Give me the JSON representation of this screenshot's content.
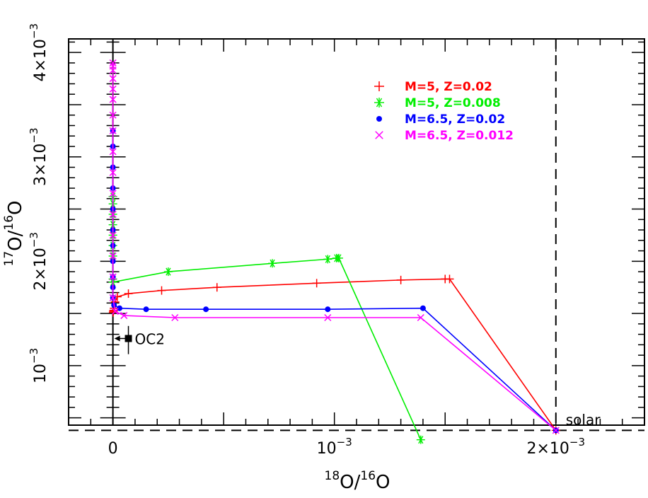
{
  "chart_data": {
    "type": "scatter",
    "xlabel": {
      "sup": "18",
      "base": "O/",
      "sup2": "16",
      "base2": "O"
    },
    "ylabel": {
      "sup": "17",
      "base": "O/",
      "sup2": "16",
      "base2": "O"
    },
    "xlim": [
      -0.0002,
      0.0024
    ],
    "ylim": [
      0.00043,
      0.00413
    ],
    "x_ticks": [
      {
        "value": 0,
        "label": "0"
      },
      {
        "value": 0.001,
        "label": "10",
        "exp": "−3"
      },
      {
        "value": 0.002,
        "label": "2×10",
        "exp": "−3"
      }
    ],
    "y_ticks": [
      {
        "value": 0.001,
        "label": "10",
        "exp": "−3"
      },
      {
        "value": 0.002,
        "label": "2×10",
        "exp": "−3"
      },
      {
        "value": 0.003,
        "label": "3×10",
        "exp": "−3"
      },
      {
        "value": 0.004,
        "label": "4×10",
        "exp": "−3"
      }
    ],
    "reference_lines": {
      "solar_x": 0.002,
      "solar_y": 0.00038,
      "label": "solar"
    },
    "observation": {
      "label": "OC2",
      "x": 7e-05,
      "y": 0.00126,
      "y_err": [
        0.00111,
        0.00138
      ],
      "upper_limit_arrow": true
    },
    "series": [
      {
        "name": "M=5, Z=0.02",
        "color": "#ff0000",
        "marker": "plus",
        "x": [
          0.002,
          0.00152,
          0.0015,
          0.0013,
          0.00092,
          0.00047,
          0.00022,
          7e-05,
          2e-05,
          1e-05,
          5e-06,
          3e-06,
          2e-06,
          1e-06
        ],
        "y": [
          0.00038,
          0.00183,
          0.00183,
          0.00182,
          0.00179,
          0.00175,
          0.00172,
          0.00169,
          0.00166,
          0.00161,
          0.00155,
          0.00153,
          0.00152,
          0.00151
        ]
      },
      {
        "name": "M=5, Z=0.008",
        "color": "#00ee00",
        "marker": "asterisk",
        "x": [
          0.00139,
          0.00102,
          0.00101,
          0.00097,
          0.00072,
          0.00025,
          0.0,
          0.0,
          0.0,
          0.0,
          0.0,
          0.0,
          0.0,
          0.0,
          0.0
        ],
        "y": [
          0.00029,
          0.00203,
          0.00203,
          0.00202,
          0.00198,
          0.0019,
          0.0018,
          0.00183,
          0.00205,
          0.00215,
          0.00225,
          0.00235,
          0.00245,
          0.00255,
          0.00262
        ]
      },
      {
        "name": "M=6.5, Z=0.02",
        "color": "#0000ff",
        "marker": "dot",
        "x": [
          0.002,
          0.0014,
          0.00097,
          0.00042,
          0.00015,
          3e-05,
          5e-06,
          0.0,
          0.0,
          0.0,
          0.0,
          0.0,
          0.0,
          0.0,
          0.0,
          0.0,
          0.0,
          0.0
        ],
        "y": [
          0.00038,
          0.00155,
          0.00154,
          0.00154,
          0.00154,
          0.00155,
          0.00158,
          0.00165,
          0.00175,
          0.00185,
          0.002,
          0.00215,
          0.0023,
          0.0025,
          0.0027,
          0.0029,
          0.0031,
          0.00325
        ]
      },
      {
        "name": "M=6.5, Z=0.012",
        "color": "#ff00ff",
        "marker": "cross",
        "x": [
          0.002,
          0.00139,
          0.00097,
          0.00028,
          5e-05,
          1e-05,
          0.0,
          0.0,
          0.0,
          0.0,
          0.0,
          0.0,
          0.0,
          0.0,
          0.0,
          0.0,
          0.0,
          0.0,
          0.0,
          0.0,
          0.0,
          0.0
        ],
        "y": [
          0.00038,
          0.00146,
          0.00146,
          0.00146,
          0.00148,
          0.00152,
          0.00165,
          0.00185,
          0.00205,
          0.00225,
          0.00245,
          0.00265,
          0.00285,
          0.00305,
          0.00325,
          0.0034,
          0.00355,
          0.00365,
          0.00375,
          0.00383,
          0.00387,
          0.0039
        ]
      }
    ]
  }
}
